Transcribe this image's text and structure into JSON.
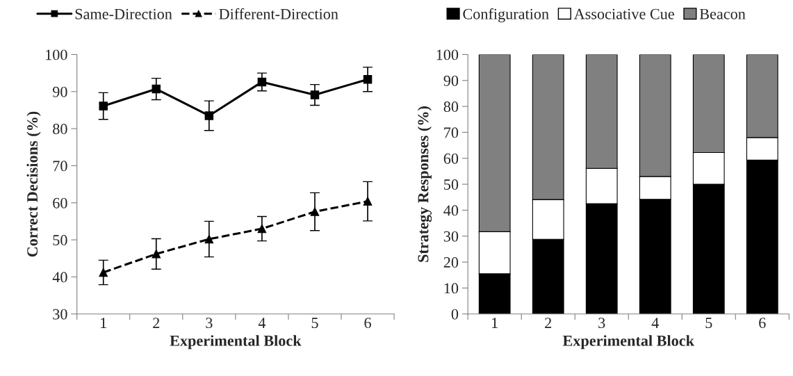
{
  "chart_data": [
    {
      "type": "line",
      "xlabel": "Experimental Block",
      "ylabel": "Correct Decisions (%)",
      "categories": [
        "1",
        "2",
        "3",
        "4",
        "5",
        "6"
      ],
      "ylim": [
        30,
        100
      ],
      "yticks": [
        30,
        40,
        50,
        60,
        70,
        80,
        90,
        100
      ],
      "grid": false,
      "legend": "top",
      "series": [
        {
          "name": "Same-Direction",
          "color": "#000000",
          "marker": "square",
          "line_style": "solid",
          "values": [
            86.1,
            90.7,
            83.5,
            92.6,
            89.1,
            93.3
          ],
          "errors": [
            3.6,
            2.9,
            4.0,
            2.4,
            2.8,
            3.3
          ]
        },
        {
          "name": "Different-Direction",
          "color": "#000000",
          "marker": "triangle",
          "line_style": "dashed",
          "values": [
            41.2,
            46.2,
            50.2,
            53.0,
            57.6,
            60.4
          ],
          "errors": [
            3.3,
            4.1,
            4.8,
            3.3,
            5.1,
            5.3
          ]
        }
      ]
    },
    {
      "type": "bar",
      "stacked": true,
      "xlabel": "Experimental Block",
      "ylabel": "Strategy Responses (%)",
      "categories": [
        "1",
        "2",
        "3",
        "4",
        "5",
        "6"
      ],
      "ylim": [
        0,
        100
      ],
      "yticks": [
        0,
        10,
        20,
        30,
        40,
        50,
        60,
        70,
        80,
        90,
        100
      ],
      "grid": false,
      "legend": "top",
      "series": [
        {
          "name": "Configuration",
          "color": "#000000",
          "values": [
            15.5,
            28.8,
            42.5,
            44.2,
            50.0,
            59.3
          ]
        },
        {
          "name": "Associative Cue",
          "color": "#ffffff",
          "values": [
            16.2,
            15.3,
            13.6,
            8.8,
            12.2,
            8.7
          ]
        },
        {
          "name": "Beacon",
          "color": "#808080",
          "values": [
            68.3,
            55.9,
            43.9,
            47.0,
            37.8,
            32.0
          ]
        }
      ]
    }
  ]
}
